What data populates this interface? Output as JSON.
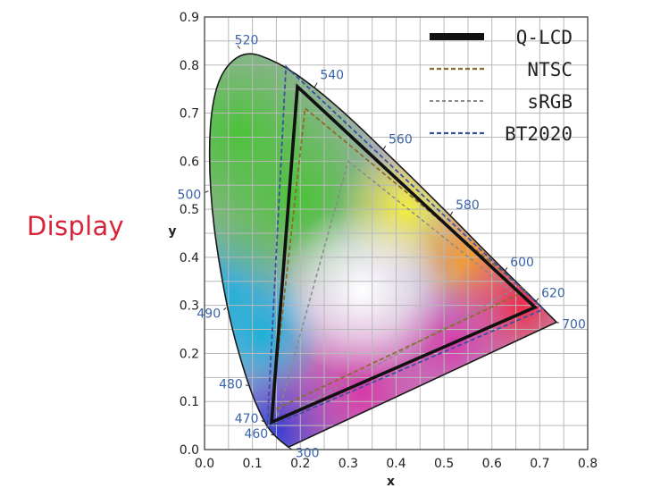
{
  "side_label": "Display",
  "chart_data": {
    "type": "line",
    "title": "",
    "xlabel": "x",
    "ylabel": "y",
    "xlim": [
      0,
      0.8
    ],
    "ylim": [
      0,
      0.9
    ],
    "x_ticks": [
      "0.0",
      "0.1",
      "0.2",
      "0.3",
      "0.4",
      "0.5",
      "0.6",
      "0.7",
      "0.8"
    ],
    "y_ticks": [
      "0.0",
      "0.1",
      "0.2",
      "0.3",
      "0.4",
      "0.5",
      "0.6",
      "0.7",
      "0.8",
      "0.9"
    ],
    "grid": true,
    "legend_position": "top-right",
    "spectral_locus": [
      [
        0.175,
        0.005
      ],
      [
        0.144,
        0.03
      ],
      [
        0.124,
        0.058
      ],
      [
        0.091,
        0.133
      ],
      [
        0.045,
        0.295
      ],
      [
        0.008,
        0.538
      ],
      [
        0.014,
        0.75
      ],
      [
        0.074,
        0.834
      ],
      [
        0.155,
        0.806
      ],
      [
        0.23,
        0.754
      ],
      [
        0.302,
        0.692
      ],
      [
        0.373,
        0.624
      ],
      [
        0.444,
        0.555
      ],
      [
        0.513,
        0.487
      ],
      [
        0.575,
        0.424
      ],
      [
        0.627,
        0.372
      ],
      [
        0.666,
        0.334
      ],
      [
        0.692,
        0.308
      ],
      [
        0.735,
        0.265
      ]
    ],
    "wavelength_labels": [
      {
        "label": "300",
        "x": 0.175,
        "y": 0.005
      },
      {
        "label": "460",
        "x": 0.144,
        "y": 0.03
      },
      {
        "label": "470",
        "x": 0.124,
        "y": 0.058
      },
      {
        "label": "480",
        "x": 0.091,
        "y": 0.133
      },
      {
        "label": "490",
        "x": 0.045,
        "y": 0.295
      },
      {
        "label": "500",
        "x": 0.008,
        "y": 0.538
      },
      {
        "label": "520",
        "x": 0.074,
        "y": 0.834
      },
      {
        "label": "540",
        "x": 0.23,
        "y": 0.754
      },
      {
        "label": "560",
        "x": 0.373,
        "y": 0.624
      },
      {
        "label": "580",
        "x": 0.513,
        "y": 0.487
      },
      {
        "label": "600",
        "x": 0.627,
        "y": 0.372
      },
      {
        "label": "620",
        "x": 0.692,
        "y": 0.308
      },
      {
        "label": "700",
        "x": 0.735,
        "y": 0.265
      }
    ],
    "series": [
      {
        "name": "Q-LCD",
        "points": [
          [
            0.194,
            0.755
          ],
          [
            0.69,
            0.296
          ],
          [
            0.14,
            0.057
          ]
        ],
        "color": "#111111"
      },
      {
        "name": "NTSC",
        "points": [
          [
            0.21,
            0.71
          ],
          [
            0.67,
            0.33
          ],
          [
            0.14,
            0.08
          ]
        ],
        "color": "#8a6d2c"
      },
      {
        "name": "sRGB",
        "points": [
          [
            0.3,
            0.6
          ],
          [
            0.64,
            0.33
          ],
          [
            0.15,
            0.06
          ]
        ],
        "color": "#8a8a8a"
      },
      {
        "name": "BT2020",
        "points": [
          [
            0.17,
            0.797
          ],
          [
            0.708,
            0.292
          ],
          [
            0.131,
            0.046
          ]
        ],
        "color": "#3c4fa0"
      }
    ]
  }
}
